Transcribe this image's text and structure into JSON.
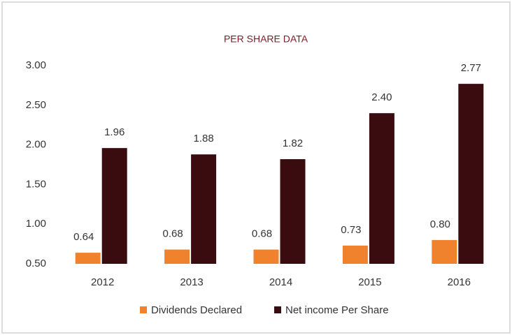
{
  "chart_data": {
    "type": "bar",
    "title": "PER SHARE DATA",
    "categories": [
      "2012",
      "2013",
      "2014",
      "2015",
      "2016"
    ],
    "series": [
      {
        "name": "Dividends Declared",
        "color": "#f0822d",
        "values": [
          0.64,
          0.68,
          0.68,
          0.73,
          0.8
        ],
        "value_labels": [
          "0.64",
          "0.68",
          "0.68",
          "0.73",
          "0.80"
        ]
      },
      {
        "name": "Net income Per Share",
        "color": "#3a0c10",
        "values": [
          1.96,
          1.88,
          1.82,
          2.4,
          2.77
        ],
        "value_labels": [
          "1.96",
          "1.88",
          "1.82",
          "2.40",
          "2.77"
        ]
      }
    ],
    "ylim": [
      0.5,
      3.0
    ],
    "yticks": [
      {
        "value": 0.5,
        "label": "0.50"
      },
      {
        "value": 1.0,
        "label": "1.00"
      },
      {
        "value": 1.5,
        "label": "1.50"
      },
      {
        "value": 2.0,
        "label": "2.00"
      },
      {
        "value": 2.5,
        "label": "2.50"
      },
      {
        "value": 3.0,
        "label": "3.00"
      }
    ],
    "grid": false,
    "legend": "bottom"
  }
}
